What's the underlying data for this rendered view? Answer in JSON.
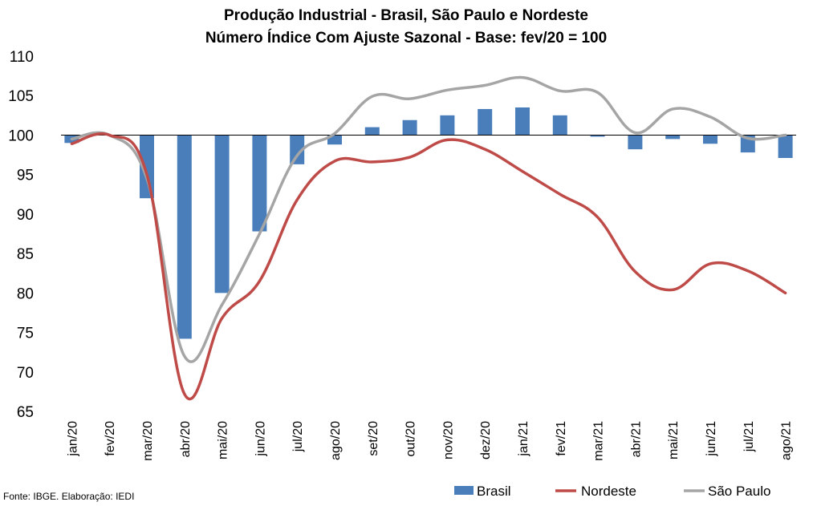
{
  "chart_data": {
    "type": "bar",
    "title": "Produção Industrial - Brasil, São Paulo e Nordeste",
    "subtitle": "Número Índice Com Ajuste Sazonal - Base: fev/20 = 100",
    "categories": [
      "jan/20",
      "fev/20",
      "mar/20",
      "abr/20",
      "mai/20",
      "jun/20",
      "jul/20",
      "ago/20",
      "set/20",
      "out/20",
      "nov/20",
      "dez/20",
      "jan/21",
      "fev/21",
      "mar/21",
      "abr/21",
      "mai/21",
      "jun/21",
      "jul/21",
      "ago/21"
    ],
    "ylim": [
      65,
      110
    ],
    "yticks": [
      65,
      70,
      75,
      80,
      85,
      90,
      95,
      100,
      105,
      110
    ],
    "baseline": 100,
    "series": [
      {
        "name": "Brasil",
        "kind": "bar",
        "color": "#4a7ebb",
        "values": [
          99.0,
          100.0,
          92.0,
          74.2,
          80.0,
          87.8,
          96.3,
          98.8,
          101.0,
          101.9,
          102.5,
          103.3,
          103.5,
          102.5,
          99.8,
          98.2,
          99.5,
          98.9,
          97.8,
          97.1
        ]
      },
      {
        "name": "Nordeste",
        "kind": "line",
        "color": "#be4b48",
        "values": [
          98.9,
          100.0,
          95.0,
          67.2,
          76.8,
          81.5,
          91.8,
          96.7,
          96.6,
          97.2,
          99.4,
          98.2,
          95.4,
          92.5,
          89.6,
          82.7,
          80.4,
          83.7,
          82.8,
          80.0
        ]
      },
      {
        "name": "São Paulo",
        "kind": "line",
        "color": "#a5a5a5",
        "values": [
          99.5,
          100.0,
          94.5,
          72.0,
          78.5,
          87.5,
          97.4,
          100.2,
          104.9,
          104.6,
          105.7,
          106.3,
          107.3,
          105.6,
          105.4,
          100.3,
          103.3,
          102.3,
          99.6,
          100.0
        ]
      }
    ],
    "legend": {
      "placement": "bottom-right"
    },
    "grid": false,
    "footer": "Fonte: IBGE. Elaboração: IEDI"
  }
}
